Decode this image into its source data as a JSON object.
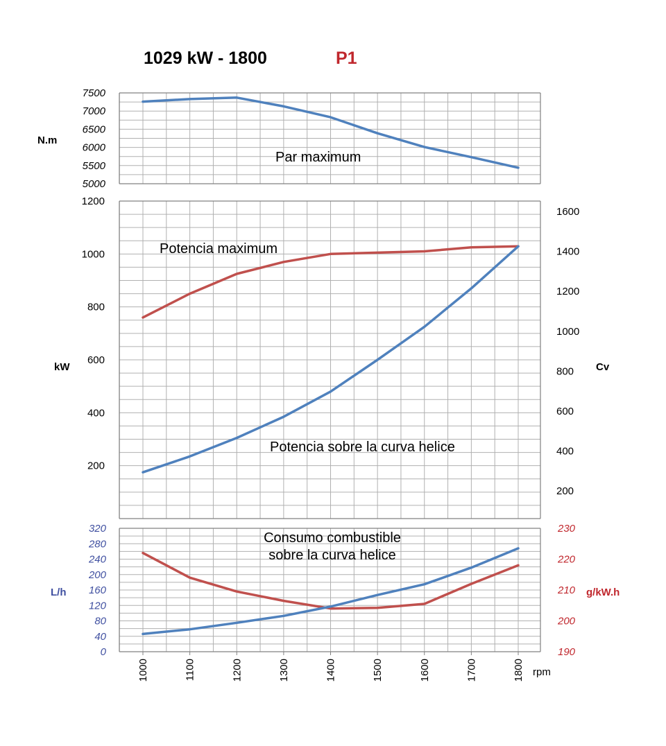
{
  "title": {
    "power": "1029 kW - 1800",
    "rating": "P1",
    "rating_color": "#c0272d"
  },
  "colors": {
    "blue": "#4f81bd",
    "red": "#c0504d",
    "grid": "#b0b0b0",
    "axis": "#808080",
    "blue_text": "#3f4fa0",
    "red_text": "#c0272d"
  },
  "chart_data": [
    {
      "id": "torque",
      "type": "line",
      "y_unit": "N.m",
      "ylim": [
        5000,
        7500
      ],
      "yticks": [
        "7500",
        "7000",
        "6500",
        "6000",
        "5500",
        "5000"
      ],
      "annotation": "Par maximum",
      "series": [
        {
          "color": "blue",
          "x": [
            1000,
            1100,
            1200,
            1300,
            1400,
            1500,
            1600,
            1700,
            1800
          ],
          "values": [
            7260,
            7330,
            7370,
            7130,
            6830,
            6390,
            6010,
            5730,
            5440
          ]
        }
      ]
    },
    {
      "id": "power",
      "type": "line",
      "y_unit_left": "kW",
      "y_unit_right": "Cv",
      "ylim": [
        0,
        1200
      ],
      "yticks_left": [
        "1200",
        "1000",
        "800",
        "600",
        "400",
        "200"
      ],
      "yticks_right": [
        "1600",
        "1400",
        "1200",
        "1000",
        "800",
        "600",
        "400",
        "200"
      ],
      "annotations": [
        "Potencia maximum",
        "Potencia sobre la curva helice"
      ],
      "series": [
        {
          "color": "red",
          "x": [
            1000,
            1100,
            1200,
            1300,
            1400,
            1500,
            1600,
            1700,
            1800
          ],
          "values": [
            760,
            850,
            925,
            970,
            1000,
            1005,
            1010,
            1025,
            1029
          ]
        },
        {
          "color": "blue",
          "x": [
            1000,
            1100,
            1200,
            1300,
            1400,
            1500,
            1600,
            1700,
            1800
          ],
          "values": [
            175,
            235,
            305,
            385,
            480,
            600,
            725,
            870,
            1029
          ]
        }
      ]
    },
    {
      "id": "consumption",
      "type": "line",
      "y_unit_left": "L/h",
      "y_unit_right": "g/kW.h",
      "ylim_left": [
        0,
        320
      ],
      "ylim_right": [
        190,
        230
      ],
      "yticks_left": [
        "320",
        "280",
        "240",
        "200",
        "160",
        "120",
        "80",
        "40",
        "0"
      ],
      "yticks_right": [
        "230",
        "220",
        "210",
        "200",
        "190"
      ],
      "annotation_lines": [
        "Consumo combustible",
        "sobre la curva helice"
      ],
      "x_unit": "rpm",
      "xticks": [
        "1000",
        "1100",
        "1200",
        "1300",
        "1400",
        "1500",
        "1600",
        "1700",
        "1800"
      ],
      "series": [
        {
          "color": "blue",
          "axis": "left",
          "x": [
            1000,
            1100,
            1200,
            1300,
            1400,
            1500,
            1600,
            1700,
            1800
          ],
          "values": [
            46,
            58,
            75,
            93,
            117,
            147,
            175,
            218,
            268
          ]
        },
        {
          "color": "red",
          "axis": "right",
          "x": [
            1000,
            1100,
            1200,
            1300,
            1400,
            1500,
            1600,
            1700,
            1800
          ],
          "values": [
            222,
            214,
            209.5,
            206.5,
            204,
            204.2,
            205.5,
            212,
            218
          ]
        }
      ]
    }
  ]
}
